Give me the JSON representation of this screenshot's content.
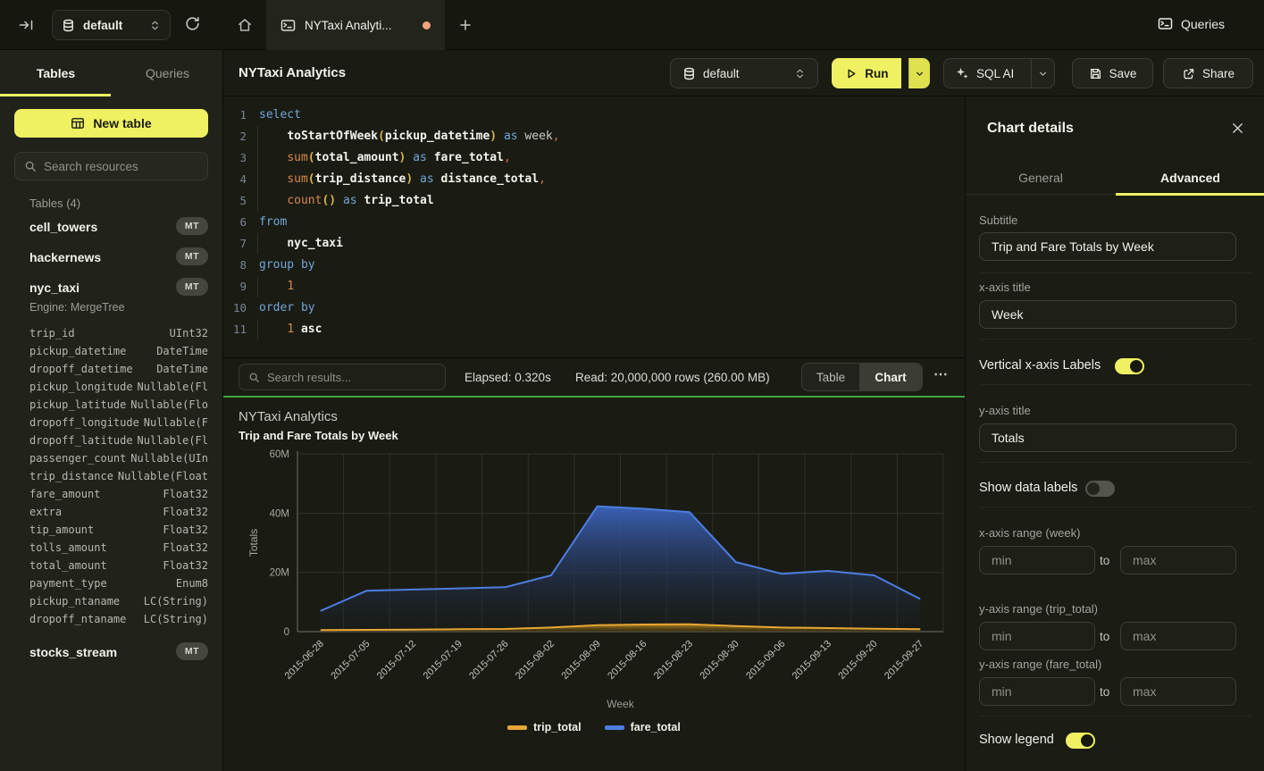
{
  "topbar": {
    "database_selector": "default",
    "tab_title": "NYTaxi Analyti...",
    "queries_button": "Queries"
  },
  "sidebar": {
    "tab_tables": "Tables",
    "tab_queries": "Queries",
    "new_table_button": "New table",
    "search_placeholder": "Search resources",
    "tables_section": "Tables (4)",
    "tables": [
      {
        "name": "cell_towers",
        "badge": "MT"
      },
      {
        "name": "hackernews",
        "badge": "MT"
      },
      {
        "name": "nyc_taxi",
        "badge": "MT"
      },
      {
        "name": "stocks_stream",
        "badge": "MT"
      }
    ],
    "nyc_taxi_engine": "Engine: MergeTree",
    "columns": [
      [
        "trip_id",
        "UInt32"
      ],
      [
        "pickup_datetime",
        "DateTime"
      ],
      [
        "dropoff_datetime",
        "DateTime"
      ],
      [
        "pickup_longitude",
        "Nullable(Fl"
      ],
      [
        "pickup_latitude",
        "Nullable(Flo"
      ],
      [
        "dropoff_longitude",
        "Nullable(F"
      ],
      [
        "dropoff_latitude",
        "Nullable(Fl"
      ],
      [
        "passenger_count",
        "Nullable(UIn"
      ],
      [
        "trip_distance",
        "Nullable(Float"
      ],
      [
        "fare_amount",
        "Float32"
      ],
      [
        "extra",
        "Float32"
      ],
      [
        "tip_amount",
        "Float32"
      ],
      [
        "tolls_amount",
        "Float32"
      ],
      [
        "total_amount",
        "Float32"
      ],
      [
        "payment_type",
        "Enum8"
      ],
      [
        "pickup_ntaname",
        "LC(String)"
      ],
      [
        "dropoff_ntaname",
        "LC(String)"
      ]
    ]
  },
  "toolbar": {
    "title": "NYTaxi Analytics",
    "database_selector": "default",
    "run_button": "Run",
    "sql_ai_button": "SQL AI",
    "save_button": "Save",
    "share_button": "Share"
  },
  "editor": {
    "lines": [
      {
        "n": "1",
        "ind": 0,
        "t": [
          [
            "kw",
            "select"
          ]
        ]
      },
      {
        "n": "2",
        "ind": 1,
        "t": [
          [
            "fn",
            "toStartOfWeek"
          ],
          [
            "par",
            "("
          ],
          [
            "id",
            "pickup_datetime"
          ],
          [
            "par",
            ")"
          ],
          [
            "al",
            " "
          ],
          [
            "kw",
            "as"
          ],
          [
            "al",
            " week"
          ],
          [
            "cm",
            ","
          ]
        ]
      },
      {
        "n": "3",
        "ind": 1,
        "t": [
          [
            "call",
            "sum"
          ],
          [
            "par",
            "("
          ],
          [
            "id",
            "total_amount"
          ],
          [
            "par",
            ")"
          ],
          [
            "al",
            " "
          ],
          [
            "kw",
            "as"
          ],
          [
            "al",
            " "
          ],
          [
            "id",
            "fare_total"
          ],
          [
            "cm",
            ","
          ]
        ]
      },
      {
        "n": "4",
        "ind": 1,
        "t": [
          [
            "call",
            "sum"
          ],
          [
            "par",
            "("
          ],
          [
            "id",
            "trip_distance"
          ],
          [
            "par",
            ")"
          ],
          [
            "al",
            " "
          ],
          [
            "kw",
            "as"
          ],
          [
            "al",
            " "
          ],
          [
            "id",
            "distance_total"
          ],
          [
            "cm",
            ","
          ]
        ]
      },
      {
        "n": "5",
        "ind": 1,
        "t": [
          [
            "call",
            "count"
          ],
          [
            "par",
            "()"
          ],
          [
            "al",
            " "
          ],
          [
            "kw",
            "as"
          ],
          [
            "al",
            " "
          ],
          [
            "id",
            "trip_total"
          ]
        ]
      },
      {
        "n": "6",
        "ind": 0,
        "t": [
          [
            "kw",
            "from"
          ]
        ]
      },
      {
        "n": "7",
        "ind": 1,
        "t": [
          [
            "id",
            "nyc_taxi"
          ]
        ]
      },
      {
        "n": "8",
        "ind": 0,
        "t": [
          [
            "kw",
            "group by"
          ]
        ]
      },
      {
        "n": "9",
        "ind": 1,
        "t": [
          [
            "num",
            "1"
          ]
        ]
      },
      {
        "n": "10",
        "ind": 0,
        "t": [
          [
            "kw",
            "order by"
          ]
        ]
      },
      {
        "n": "11",
        "ind": 1,
        "t": [
          [
            "num",
            "1"
          ],
          [
            "al",
            " "
          ],
          [
            "id",
            "asc"
          ]
        ]
      }
    ]
  },
  "results": {
    "search_placeholder": "Search results...",
    "elapsed": "Elapsed: 0.320s",
    "read": "Read: 20,000,000 rows (260.00 MB)",
    "table_toggle": "Table",
    "chart_toggle": "Chart",
    "more": "⋯"
  },
  "chart_data": {
    "type": "area",
    "title": "NYTaxi Analytics",
    "subtitle": "Trip and Fare Totals by Week",
    "xlabel": "Week",
    "ylabel": "Totals",
    "grid": true,
    "legend_position": "bottom",
    "ylim": [
      0,
      60000000
    ],
    "ytick_values": [
      0,
      20000000,
      40000000,
      60000000
    ],
    "ytick_labels": [
      "0",
      "20M",
      "40M",
      "60M"
    ],
    "x": [
      "2015-06-28",
      "2015-07-05",
      "2015-07-12",
      "2015-07-19",
      "2015-07-26",
      "2015-08-02",
      "2015-08-09",
      "2015-08-16",
      "2015-08-23",
      "2015-08-30",
      "2015-09-06",
      "2015-09-13",
      "2015-09-20",
      "2015-09-27"
    ],
    "series": [
      {
        "name": "trip_total",
        "color": "#e7a636",
        "values": [
          500000,
          600000,
          700000,
          800000,
          900000,
          1400000,
          2200000,
          2400000,
          2500000,
          1900000,
          1400000,
          1200000,
          1000000,
          800000
        ]
      },
      {
        "name": "fare_total",
        "color": "#4d7ee2",
        "values": [
          7000000,
          13800000,
          14200000,
          14600000,
          15000000,
          19000000,
          42300000,
          41500000,
          40300000,
          23500000,
          19500000,
          20500000,
          19000000,
          11000000
        ]
      }
    ]
  },
  "panel": {
    "title": "Chart details",
    "tab_general": "General",
    "tab_advanced": "Advanced",
    "subtitle_label": "Subtitle",
    "subtitle_value": "Trip and Fare Totals by Week",
    "xaxis_title_label": "x-axis title",
    "xaxis_title_value": "Week",
    "vertical_labels_label": "Vertical x-axis Labels",
    "vertical_labels_on": true,
    "yaxis_title_label": "y-axis title",
    "yaxis_title_value": "Totals",
    "data_labels_label": "Show data labels",
    "data_labels_on": false,
    "xrange_label": "x-axis range (week)",
    "yrange_trip_label": "y-axis range (trip_total)",
    "yrange_fare_label": "y-axis range (fare_total)",
    "min_placeholder": "min",
    "max_placeholder": "max",
    "to_label": "to",
    "legend_label": "Show legend",
    "legend_on": true
  }
}
